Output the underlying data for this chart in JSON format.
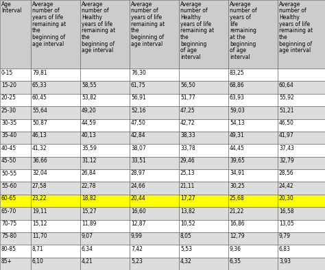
{
  "col_headers": [
    "Age\nInterval",
    "Average\nnumber of\nyears of life\nremaining at\nthe\nbeginning of\nage interval",
    "Average\nnumber of\nHealthy\nyears of life\nremaining at\nthe\nbeginning of\nage interval",
    "Average\nnumber of\nyears of life\nremaining at\nthe\nbeginning of\nage interval",
    "Average\nnumber of\nHealthy\nyears of life\nremaining at\nthe\nbeginning\nof age\ninterval",
    "Average\nnumber of\nyears of\nlife\nremaining\nat the\nbeginning\nof age\ninterval",
    "Average\nnumber of\nHealthy\nyears of life\nremaining at\nthe\nbeginning of\nage interval"
  ],
  "rows": [
    [
      "0-15",
      "79,81",
      "",
      "76,30",
      "",
      "83,25",
      ""
    ],
    [
      "15-20",
      "65,33",
      "58,55",
      "61,75",
      "56,50",
      "68,86",
      "60,64"
    ],
    [
      "20-25",
      "60,45",
      "53,82",
      "56,91",
      "51,77",
      "63,93",
      "55,92"
    ],
    [
      "25-30",
      "55,64",
      "49,20",
      "52,16",
      "47,25",
      "59,03",
      "51,21"
    ],
    [
      "30-35",
      "50,87",
      "44,59",
      "47,50",
      "42,72",
      "54,13",
      "46,50"
    ],
    [
      "35-40",
      "46,13",
      "40,13",
      "42,84",
      "38,33",
      "49,31",
      "41,97"
    ],
    [
      "40-45",
      "41,32",
      "35,59",
      "38,07",
      "33,78",
      "44,45",
      "37,43"
    ],
    [
      "45-50",
      "36,66",
      "31,12",
      "33,51",
      "29,46",
      "39,65",
      "32,79"
    ],
    [
      "50-55",
      "32,04",
      "26,84",
      "28,97",
      "25,13",
      "34,91",
      "28,56"
    ],
    [
      "55-60",
      "27,58",
      "22,78",
      "24,66",
      "21,11",
      "30,25",
      "24,42"
    ],
    [
      "60-65",
      "23,22",
      "18,82",
      "20,44",
      "17,27",
      "25,68",
      "20,30"
    ],
    [
      "65-70",
      "19,11",
      "15,27",
      "16,60",
      "13,82",
      "21,22",
      "16,58"
    ],
    [
      "70-75",
      "15,12",
      "11,89",
      "12,87",
      "10,52",
      "16,86",
      "13,05"
    ],
    [
      "75-80",
      "11,70",
      "9,07",
      "9,99",
      "8,05",
      "12,79",
      "9,79"
    ],
    [
      "80-85",
      "8,71",
      "6,34",
      "7,42",
      "5,53",
      "9,36",
      "6,83"
    ],
    [
      "85+",
      "6,10",
      "4,21",
      "5,23",
      "4,32",
      "6,35",
      "3,93"
    ]
  ],
  "highlight_row": 10,
  "highlight_color": "#FFFF00",
  "header_bg": "#CCCCCC",
  "row_bg_even": "#FFFFFF",
  "row_bg_odd": "#DDDDDD",
  "border_color": "#555555",
  "font_size": 5.5,
  "header_font_size": 5.5,
  "figwidth": 4.74,
  "figheight": 3.94,
  "dpi": 100
}
